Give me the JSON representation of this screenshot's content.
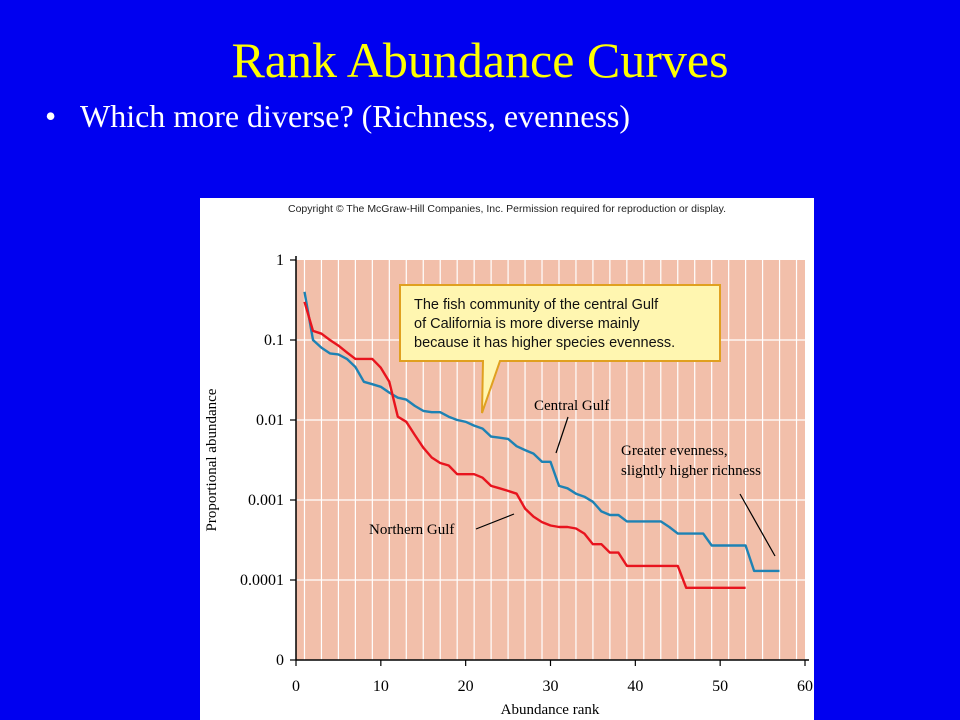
{
  "slide": {
    "title": "Rank Abundance Curves",
    "bullet": "Which more diverse? (Richness, evenness)",
    "bullet_symbol": "•"
  },
  "figure": {
    "copyright": "Copyright © The McGraw-Hill Companies, Inc. Permission required for reproduction or display."
  },
  "colors": {
    "background": "#0000f0",
    "title": "#ffff00",
    "plot_bg": "#f2bfaa",
    "northern": "#e8141e",
    "central": "#1e82b4",
    "callout_bg": "#fff6b0",
    "callout_border": "#e0a020"
  },
  "chart_data": {
    "type": "line",
    "xlabel": "Abundance rank",
    "ylabel": "Proportional abundance",
    "xlim": [
      0,
      60
    ],
    "x_ticks": [
      0,
      10,
      20,
      30,
      40,
      50,
      60
    ],
    "y_scale": "log",
    "y_ticks": [
      "1",
      "0.1",
      "0.01",
      "0.001",
      "0.0001",
      "0"
    ],
    "grid": true,
    "series": [
      {
        "name": "Central Gulf",
        "points": [
          [
            1,
            0.4
          ],
          [
            2,
            0.1
          ],
          [
            3,
            0.08
          ],
          [
            4,
            0.068
          ],
          [
            5,
            0.066
          ],
          [
            6,
            0.058
          ],
          [
            7,
            0.046
          ],
          [
            8,
            0.03
          ],
          [
            9,
            0.028
          ],
          [
            10,
            0.026
          ],
          [
            11,
            0.022
          ],
          [
            12,
            0.019
          ],
          [
            13,
            0.018
          ],
          [
            14,
            0.015
          ],
          [
            15,
            0.013
          ],
          [
            16,
            0.0125
          ],
          [
            17,
            0.0125
          ],
          [
            18,
            0.011
          ],
          [
            19,
            0.01
          ],
          [
            20,
            0.0095
          ],
          [
            21,
            0.0085
          ],
          [
            22,
            0.0078
          ],
          [
            23,
            0.0062
          ],
          [
            24,
            0.006
          ],
          [
            25,
            0.0058
          ],
          [
            26,
            0.0047
          ],
          [
            27,
            0.0042
          ],
          [
            28,
            0.0038
          ],
          [
            29,
            0.003
          ],
          [
            30,
            0.003
          ],
          [
            31,
            0.0015
          ],
          [
            32,
            0.0014
          ],
          [
            33,
            0.0012
          ],
          [
            34,
            0.0011
          ],
          [
            35,
            0.00095
          ],
          [
            36,
            0.00072
          ],
          [
            37,
            0.00065
          ],
          [
            38,
            0.00065
          ],
          [
            39,
            0.00054
          ],
          [
            40,
            0.00054
          ],
          [
            41,
            0.00054
          ],
          [
            42,
            0.00054
          ],
          [
            43,
            0.00054
          ],
          [
            44,
            0.00046
          ],
          [
            45,
            0.00038
          ],
          [
            46,
            0.00038
          ],
          [
            47,
            0.00038
          ],
          [
            48,
            0.00038
          ],
          [
            49,
            0.00027
          ],
          [
            50,
            0.00027
          ],
          [
            51,
            0.00027
          ],
          [
            52,
            0.00027
          ],
          [
            53,
            0.00027
          ],
          [
            54,
            0.00013
          ],
          [
            55,
            0.00013
          ],
          [
            56,
            0.00013
          ],
          [
            57,
            0.00013
          ]
        ]
      },
      {
        "name": "Northern Gulf",
        "points": [
          [
            1,
            0.3
          ],
          [
            2,
            0.13
          ],
          [
            3,
            0.12
          ],
          [
            4,
            0.1
          ],
          [
            5,
            0.085
          ],
          [
            6,
            0.07
          ],
          [
            7,
            0.058
          ],
          [
            8,
            0.058
          ],
          [
            9,
            0.058
          ],
          [
            10,
            0.045
          ],
          [
            11,
            0.03
          ],
          [
            12,
            0.011
          ],
          [
            13,
            0.0095
          ],
          [
            14,
            0.0065
          ],
          [
            15,
            0.0045
          ],
          [
            16,
            0.0034
          ],
          [
            17,
            0.0029
          ],
          [
            18,
            0.0027
          ],
          [
            19,
            0.0021
          ],
          [
            20,
            0.0021
          ],
          [
            21,
            0.0021
          ],
          [
            22,
            0.0019
          ],
          [
            23,
            0.0015
          ],
          [
            24,
            0.0014
          ],
          [
            25,
            0.0013
          ],
          [
            26,
            0.0012
          ],
          [
            27,
            0.00078
          ],
          [
            28,
            0.00062
          ],
          [
            29,
            0.00053
          ],
          [
            30,
            0.00048
          ],
          [
            31,
            0.00046
          ],
          [
            32,
            0.00046
          ],
          [
            33,
            0.00044
          ],
          [
            34,
            0.00038
          ],
          [
            35,
            0.00028
          ],
          [
            36,
            0.00028
          ],
          [
            37,
            0.00022
          ],
          [
            38,
            0.00022
          ],
          [
            39,
            0.00015
          ],
          [
            40,
            0.00015
          ],
          [
            41,
            0.00015
          ],
          [
            42,
            0.00015
          ],
          [
            43,
            0.00015
          ],
          [
            44,
            0.00015
          ],
          [
            45,
            0.00015
          ],
          [
            46,
            8e-05
          ],
          [
            47,
            8e-05
          ],
          [
            48,
            8e-05
          ],
          [
            49,
            8e-05
          ],
          [
            50,
            8e-05
          ],
          [
            51,
            8e-05
          ],
          [
            52,
            8e-05
          ],
          [
            53,
            8e-05
          ]
        ]
      }
    ],
    "annotations": {
      "callout": [
        "The fish community of the central Gulf",
        "of California is more diverse mainly",
        "because it has higher species evenness."
      ],
      "central_label": "Central Gulf",
      "northern_label": "Northern Gulf",
      "evenness_label": [
        "Greater evenness,",
        "slightly higher richness"
      ]
    }
  }
}
